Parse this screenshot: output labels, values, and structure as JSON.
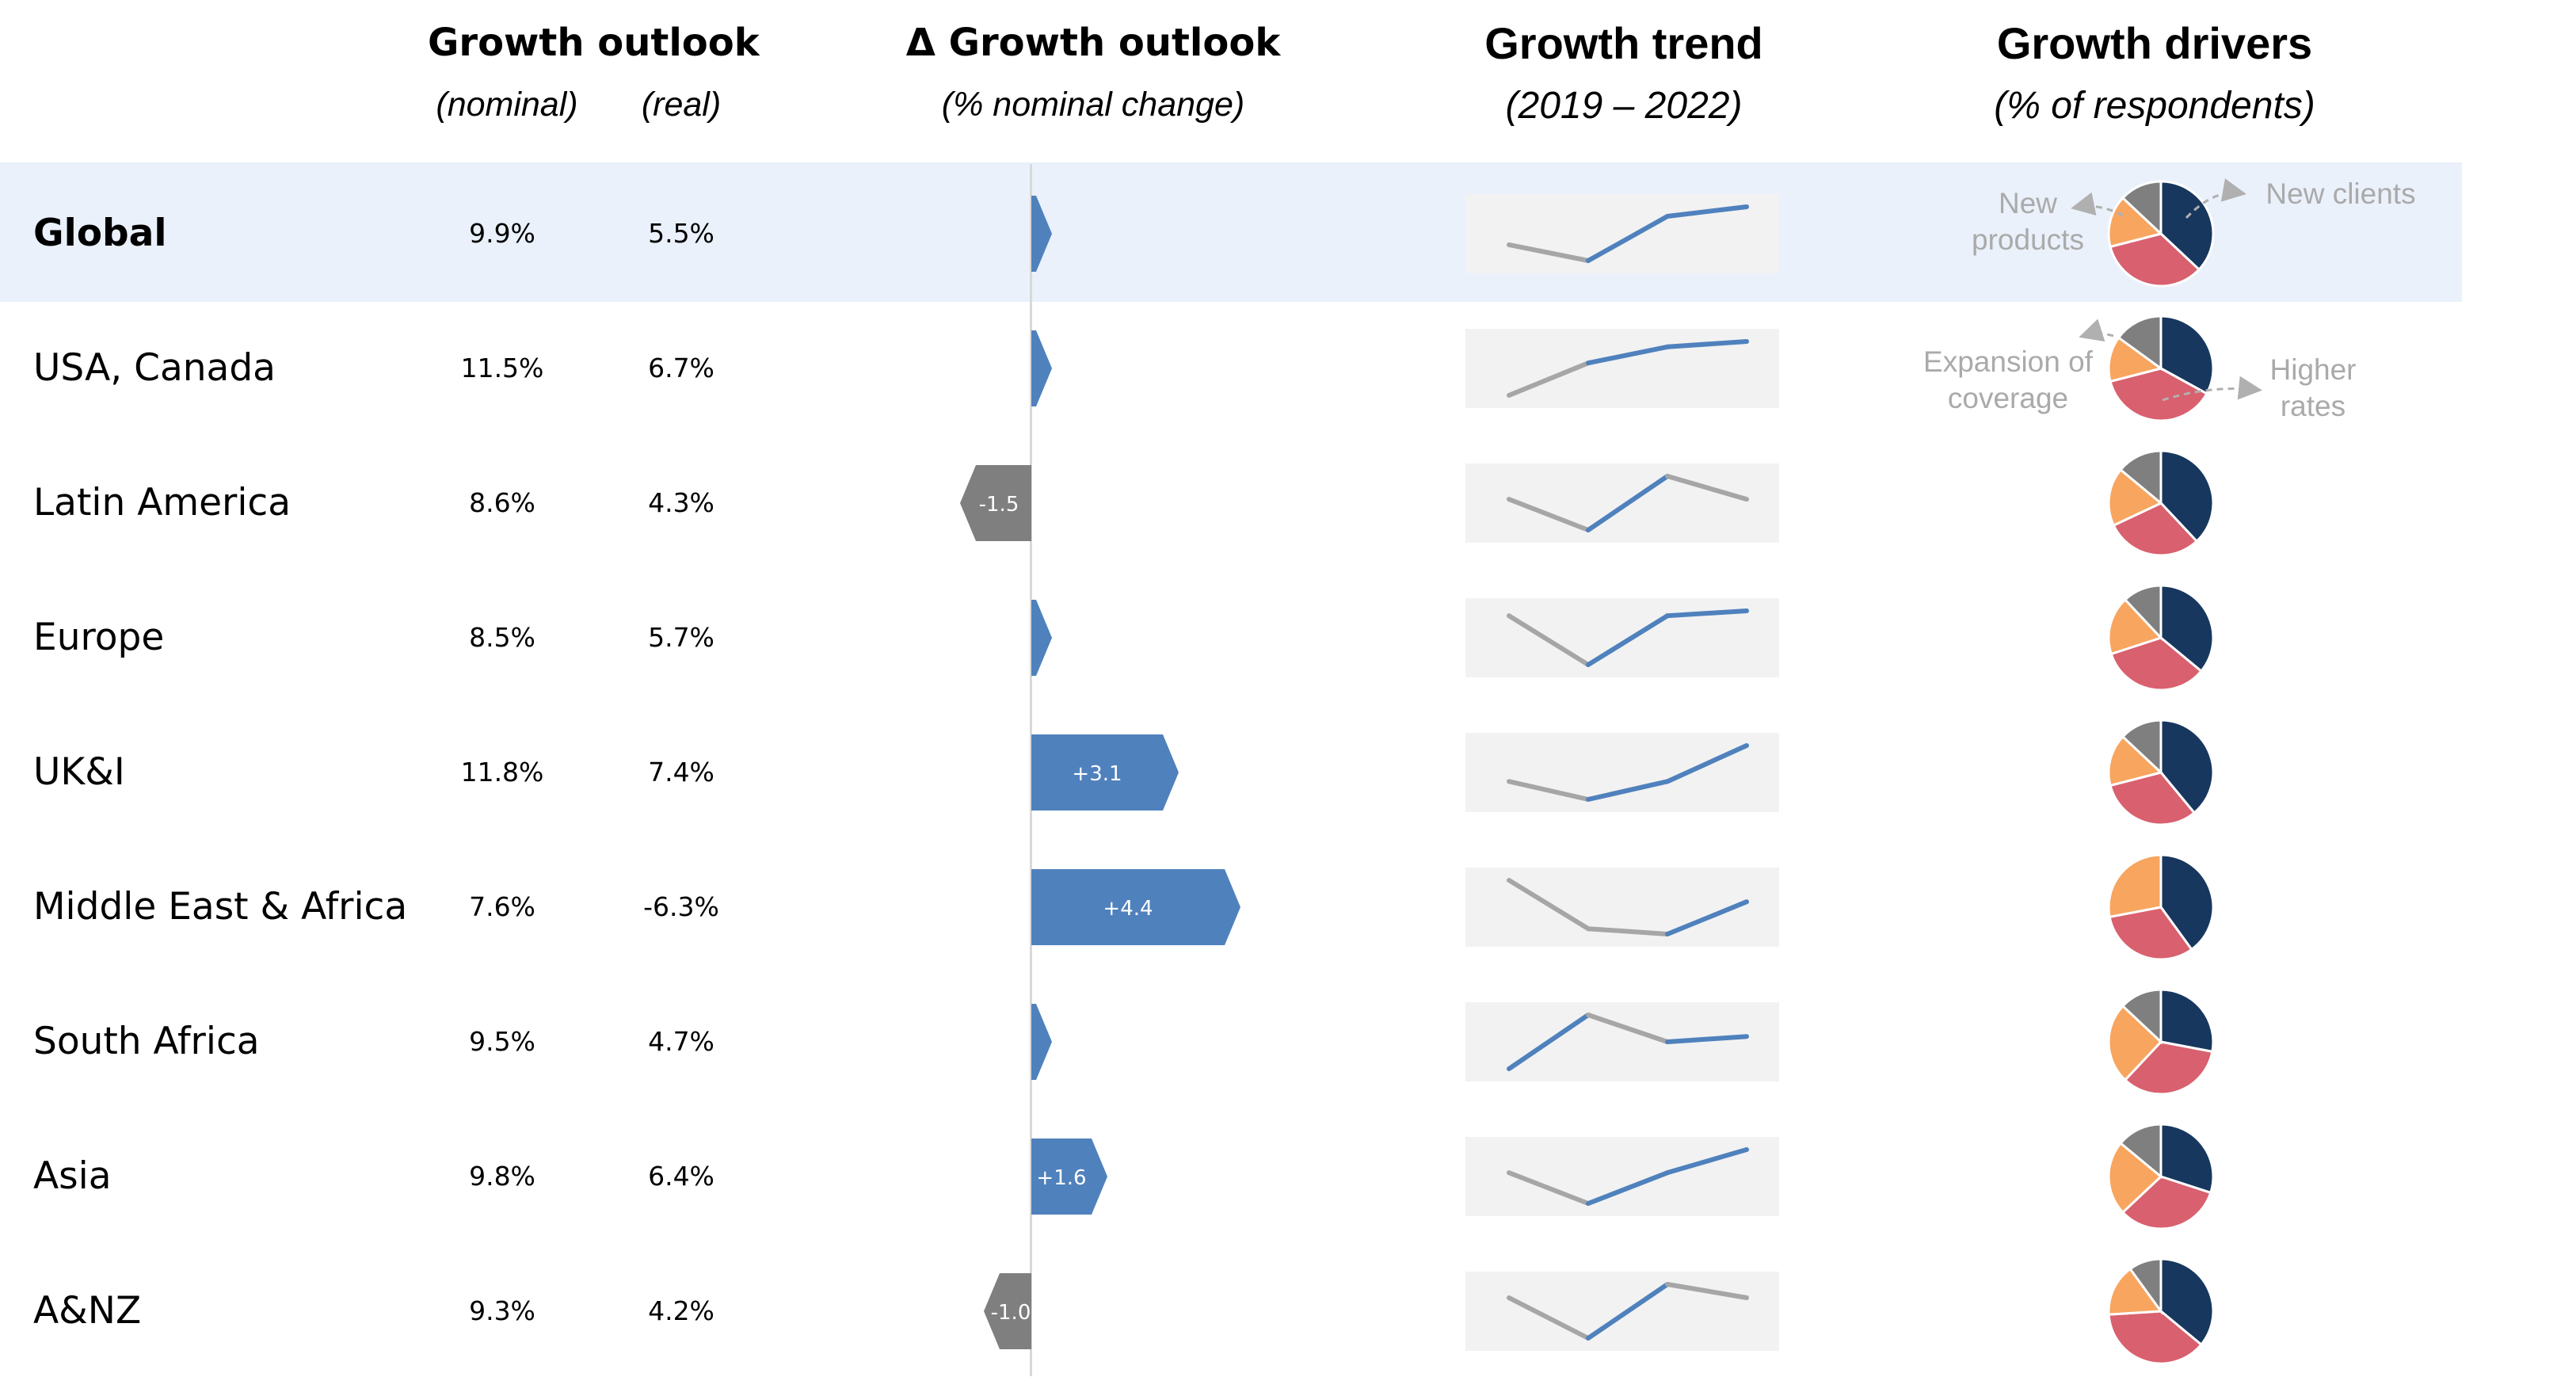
{
  "headers": {
    "growth_outlook": "Growth outlook",
    "nominal": "(nominal)",
    "real": "(real)",
    "delta_outlook": "Δ Growth outlook",
    "delta_sub": "(% nominal change)",
    "trend": "Growth trend",
    "trend_sub": "(2019 – 2022)",
    "drivers": "Growth drivers",
    "drivers_sub": "(% of respondents)"
  },
  "callouts": {
    "new_products": "New\nproducts",
    "new_clients": "New clients",
    "expansion": "Expansion of\ncoverage",
    "higher_rates": "Higher\nrates"
  },
  "colors": {
    "positive": "#4f81bd",
    "negative": "#7f7f7f",
    "trend_highlight": "#4f81bd",
    "trend_base": "#a6a6a6",
    "new_clients": "#17375e",
    "higher_rates": "#d9606e",
    "expansion": "#f8a55f",
    "new_products": "#7f7f7f"
  },
  "chart_data": {
    "type": "table",
    "rows": [
      {
        "region": "Global",
        "nominal": "9.9%",
        "real": "5.5%",
        "delta": 0.4,
        "delta_label": "",
        "trend": [
          1.0,
          0.5,
          1.9,
          2.2
        ],
        "trend_color": [
          0,
          1,
          1
        ],
        "drivers": [
          37,
          34,
          16,
          13
        ]
      },
      {
        "region": "USA, Canada",
        "nominal": "11.5%",
        "real": "6.7%",
        "delta": 0.2,
        "delta_label": "",
        "trend": [
          1.0,
          1.6,
          1.9,
          2.0
        ],
        "trend_color": [
          0,
          1,
          1
        ],
        "drivers": [
          33,
          38,
          14,
          15
        ]
      },
      {
        "region": "Latin America",
        "nominal": "8.6%",
        "real": "4.3%",
        "delta": -1.5,
        "delta_label": "-1.5",
        "trend": [
          1.2,
          0.4,
          1.8,
          1.2
        ],
        "trend_color": [
          0,
          1,
          0
        ],
        "drivers": [
          38,
          30,
          18,
          14
        ]
      },
      {
        "region": "Europe",
        "nominal": "8.5%",
        "real": "5.7%",
        "delta": 0.4,
        "delta_label": "",
        "trend": [
          1.0,
          0.0,
          1.0,
          1.1
        ],
        "trend_color": [
          0,
          1,
          1
        ],
        "drivers": [
          36,
          34,
          18,
          12
        ]
      },
      {
        "region": "UK&I",
        "nominal": "11.8%",
        "real": "7.4%",
        "delta": 3.1,
        "delta_label": "+3.1",
        "trend": [
          0.6,
          0.4,
          0.6,
          1.0
        ],
        "trend_color": [
          0,
          1,
          1
        ],
        "drivers": [
          39,
          32,
          16,
          13
        ]
      },
      {
        "region": "Middle East & Africa",
        "nominal": "7.6%",
        "real": "-6.3%",
        "delta": 4.4,
        "delta_label": "+4.4",
        "trend": [
          1.0,
          0.1,
          0.0,
          0.6
        ],
        "trend_color": [
          0,
          0,
          1
        ],
        "drivers": [
          40,
          32,
          28,
          0
        ]
      },
      {
        "region": "South Africa",
        "nominal": "9.5%",
        "real": "4.7%",
        "delta": 0.3,
        "delta_label": "",
        "trend": [
          0.0,
          1.0,
          0.5,
          0.6
        ],
        "trend_color": [
          1,
          0,
          1
        ],
        "drivers": [
          28,
          34,
          25,
          13
        ]
      },
      {
        "region": "Asia",
        "nominal": "9.8%",
        "real": "6.4%",
        "delta": 1.6,
        "delta_label": "+1.6",
        "trend": [
          0.9,
          0.5,
          0.9,
          1.2
        ],
        "trend_color": [
          0,
          1,
          1
        ],
        "drivers": [
          30,
          33,
          23,
          14
        ]
      },
      {
        "region": "A&NZ",
        "nominal": "9.3%",
        "real": "4.2%",
        "delta": -1.0,
        "delta_label": "-1.0",
        "trend": [
          1.0,
          0.4,
          1.2,
          1.0
        ],
        "trend_color": [
          0,
          1,
          0
        ],
        "drivers": [
          36,
          38,
          16,
          10
        ]
      }
    ]
  }
}
